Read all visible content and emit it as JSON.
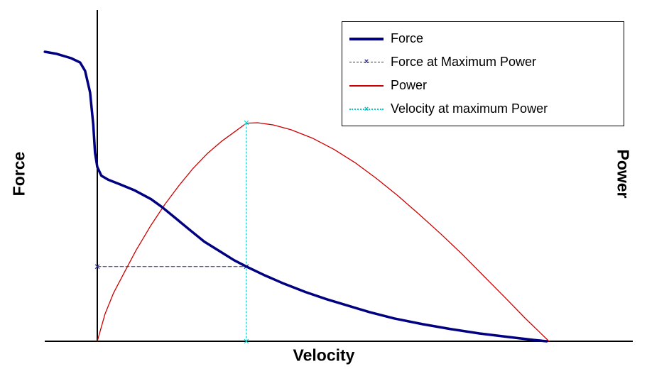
{
  "axes": {
    "x_label": "Velocity",
    "y_left_label": "Force",
    "y_right_label": "Power",
    "tick_labels": "none shown"
  },
  "legend": {
    "position": "top-right",
    "items": [
      {
        "label": "Force",
        "color": "#000080",
        "style": "solid-thick"
      },
      {
        "label": "Force at Maximum Power",
        "color": "#26268c",
        "style": "dashed-with-x-marker"
      },
      {
        "label": "Power",
        "color": "#cc0000",
        "style": "solid-thin"
      },
      {
        "label": "Velocity at maximum Power",
        "color": "#00cccc",
        "style": "dotted-with-x-marker"
      }
    ]
  },
  "chart_data": {
    "type": "line",
    "title": "",
    "xlabel": "Velocity",
    "ylabel_left": "Force",
    "ylabel_right": "Power",
    "axis_ranges": "no numeric ticks shown; x normalized 0-1 (0 = vertical zero-velocity axis line, force curve extends to -0.116 eccentric region), y normalized 0-1 per axis",
    "grid": "off",
    "annotations": {
      "velocity_at_max_power_x": 0.33,
      "force_at_max_power_y": 0.258,
      "power_max_y": 1.0
    },
    "series": [
      {
        "id": "force",
        "name": "Force",
        "yaxis": "force",
        "color": "#000080",
        "width": 3.5,
        "dash": "",
        "marker": "",
        "points": [
          [
            -0.116,
            1.0
          ],
          [
            -0.09,
            0.993
          ],
          [
            -0.058,
            0.978
          ],
          [
            -0.038,
            0.963
          ],
          [
            -0.027,
            0.934
          ],
          [
            -0.016,
            0.86
          ],
          [
            -0.009,
            0.749
          ],
          [
            -0.005,
            0.651
          ],
          [
            0.0,
            0.602
          ],
          [
            0.009,
            0.572
          ],
          [
            0.024,
            0.558
          ],
          [
            0.049,
            0.543
          ],
          [
            0.083,
            0.521
          ],
          [
            0.119,
            0.491
          ],
          [
            0.143,
            0.464
          ],
          [
            0.175,
            0.423
          ],
          [
            0.206,
            0.383
          ],
          [
            0.237,
            0.344
          ],
          [
            0.272,
            0.31
          ],
          [
            0.303,
            0.28
          ],
          [
            0.33,
            0.258
          ],
          [
            0.369,
            0.229
          ],
          [
            0.413,
            0.199
          ],
          [
            0.461,
            0.17
          ],
          [
            0.508,
            0.145
          ],
          [
            0.555,
            0.123
          ],
          [
            0.602,
            0.101
          ],
          [
            0.657,
            0.079
          ],
          [
            0.72,
            0.059
          ],
          [
            0.783,
            0.042
          ],
          [
            0.846,
            0.027
          ],
          [
            0.909,
            0.015
          ],
          [
            0.964,
            0.005
          ],
          [
            0.995,
            0.0
          ]
        ]
      },
      {
        "id": "force-at-max-power",
        "name": "Force at Maximum Power",
        "yaxis": "force",
        "color": "#26268c",
        "width": 1,
        "dash": "5 3",
        "marker": "x",
        "points": [
          [
            0.0,
            0.258
          ],
          [
            0.33,
            0.258
          ]
        ]
      },
      {
        "id": "power",
        "name": "Power",
        "yaxis": "power",
        "color": "#cc0000",
        "width": 1.3,
        "dash": "",
        "marker": "",
        "points": [
          [
            0.0,
            0.0
          ],
          [
            0.017,
            0.124
          ],
          [
            0.036,
            0.221
          ],
          [
            0.06,
            0.316
          ],
          [
            0.086,
            0.417
          ],
          [
            0.118,
            0.528
          ],
          [
            0.149,
            0.625
          ],
          [
            0.181,
            0.713
          ],
          [
            0.212,
            0.791
          ],
          [
            0.244,
            0.86
          ],
          [
            0.275,
            0.915
          ],
          [
            0.305,
            0.96
          ],
          [
            0.33,
            0.998
          ],
          [
            0.355,
            1.0
          ],
          [
            0.39,
            0.99
          ],
          [
            0.429,
            0.968
          ],
          [
            0.476,
            0.93
          ],
          [
            0.524,
            0.878
          ],
          [
            0.571,
            0.817
          ],
          [
            0.618,
            0.745
          ],
          [
            0.665,
            0.667
          ],
          [
            0.712,
            0.582
          ],
          [
            0.759,
            0.494
          ],
          [
            0.807,
            0.4
          ],
          [
            0.854,
            0.302
          ],
          [
            0.901,
            0.204
          ],
          [
            0.948,
            0.104
          ],
          [
            0.98,
            0.04
          ],
          [
            1.0,
            0.0
          ]
        ]
      },
      {
        "id": "velocity-at-max-power",
        "name": "Velocity at maximum Power",
        "yaxis": "power",
        "color": "#00d5d5",
        "width": 1.3,
        "dash": "2 3",
        "marker": "x",
        "points": [
          [
            0.33,
            0.0
          ],
          [
            0.33,
            1.0
          ]
        ]
      }
    ]
  }
}
